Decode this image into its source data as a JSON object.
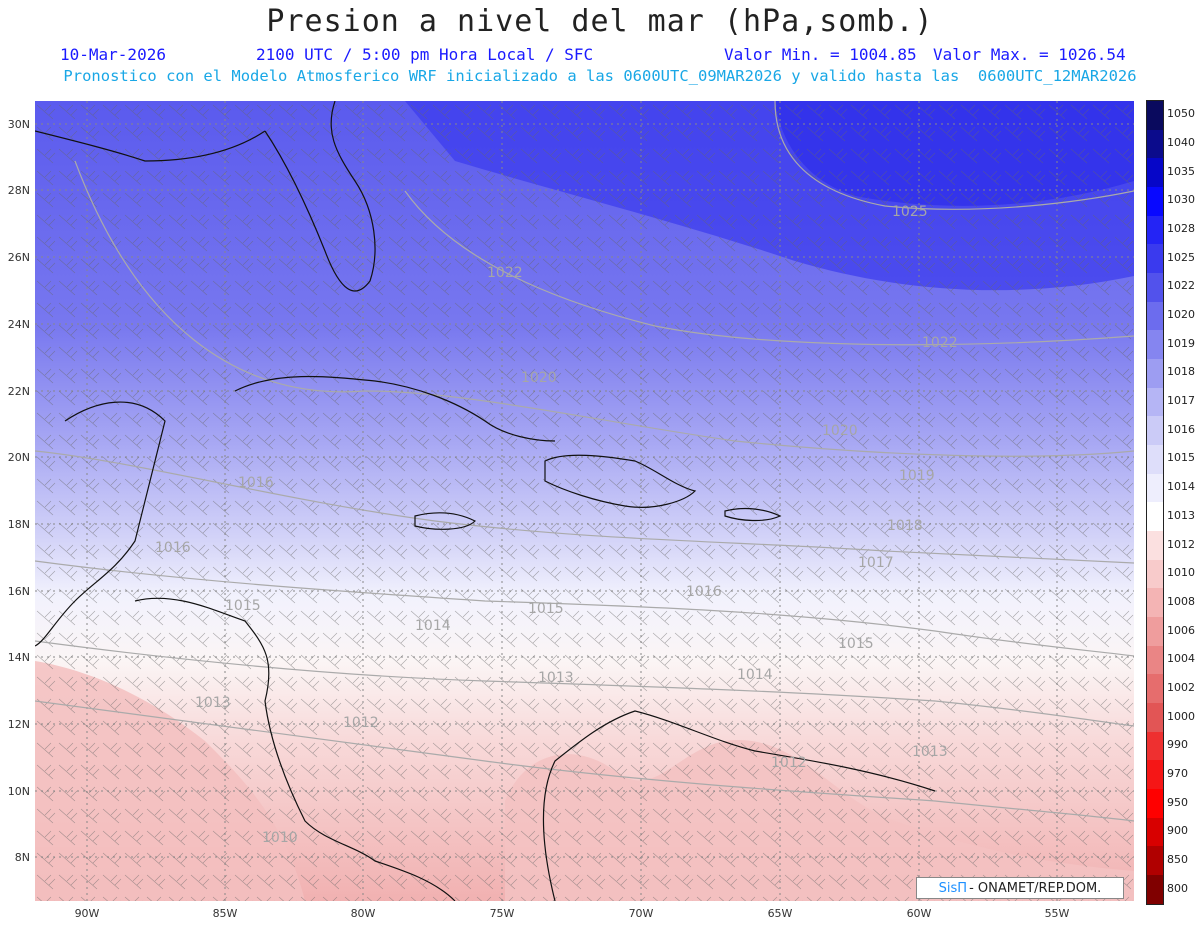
{
  "header": {
    "title": "Presion a nivel del mar (hPa,somb.)",
    "date": "10-Mar-2026",
    "time": "2100 UTC / 5:00 pm Hora Local / SFC",
    "min_label": "Valor Min. = 1004.85",
    "max_label": "Valor Max. = 1026.54",
    "forecast_note": "Pronostico con el Modelo Atmosferico WRF inicializado a las 0600UTC_09MAR2026 y valido hasta las  0600UTC_12MAR2026"
  },
  "axes": {
    "lat_labels": [
      "30N",
      "28N",
      "26N",
      "24N",
      "22N",
      "20N",
      "18N",
      "16N",
      "14N",
      "12N",
      "10N",
      "8N"
    ],
    "lon_labels": [
      "90W",
      "85W",
      "80W",
      "75W",
      "70W",
      "65W",
      "60W",
      "55W"
    ]
  },
  "contour_labels": [
    "1025",
    "1022",
    "1022",
    "1020",
    "1020",
    "1019",
    "1018",
    "1017",
    "1016",
    "1016",
    "1016",
    "1015",
    "1015",
    "1015",
    "1014",
    "1014",
    "1013",
    "1013",
    "1013",
    "1012",
    "1012",
    "1010"
  ],
  "colorbar": {
    "levels": [
      "1050",
      "1040",
      "1035",
      "1030",
      "1028",
      "1025",
      "1022",
      "1020",
      "1019",
      "1018",
      "1017",
      "1016",
      "1015",
      "1014",
      "1013",
      "1012",
      "1010",
      "1008",
      "1006",
      "1004",
      "1002",
      "1000",
      "990",
      "970",
      "950",
      "900",
      "850",
      "800"
    ],
    "colors": [
      "#0a0a5e",
      "#0b0b8c",
      "#0606c8",
      "#0808ff",
      "#2424f5",
      "#3a3aee",
      "#5252ec",
      "#6c6cee",
      "#8585f0",
      "#9d9df2",
      "#b5b5f5",
      "#cbcbf7",
      "#dedefa",
      "#eeeefd",
      "#ffffff",
      "#fbe0e0",
      "#f8cbcb",
      "#f4b4b4",
      "#ef9d9d",
      "#ea8585",
      "#e66d6d",
      "#e25555",
      "#ee3030",
      "#f51616",
      "#ff0000",
      "#d80000",
      "#b00000",
      "#800000"
    ]
  },
  "credit": {
    "logo": "SisΠ",
    "text": "- ONAMET/REP.DOM."
  }
}
